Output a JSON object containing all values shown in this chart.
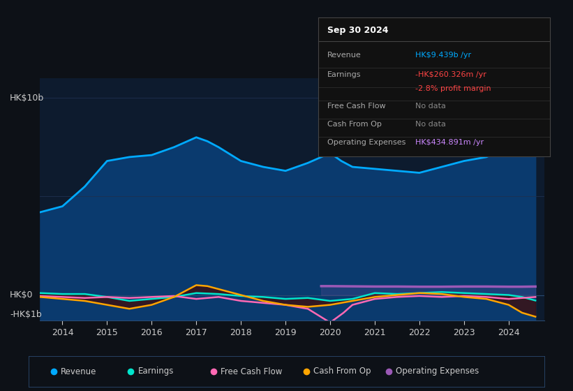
{
  "bg_color": "#0d1117",
  "plot_bg_color": "#0d1b2e",
  "grid_color": "#1e3050",
  "text_color": "#cccccc",
  "title_text_color": "#ffffff",
  "ylabel_top": "HK$10b",
  "ylabel_zero": "HK$0",
  "ylabel_neg": "-HK$1b",
  "x_ticks": [
    2014,
    2015,
    2016,
    2017,
    2018,
    2019,
    2020,
    2021,
    2022,
    2023,
    2024
  ],
  "ylim": [
    -1.3,
    11.0
  ],
  "revenue_color": "#00aaff",
  "revenue_fill": "#0a3a6e",
  "earnings_color": "#00e5cc",
  "fcf_color": "#ff69b4",
  "cashfromop_color": "#ffa500",
  "opex_color": "#9b59b6",
  "revenue_x": [
    2013.5,
    2014,
    2014.5,
    2015,
    2015.5,
    2016,
    2016.5,
    2017,
    2017.25,
    2017.5,
    2018,
    2018.5,
    2019,
    2019.5,
    2020,
    2020.25,
    2020.5,
    2021,
    2021.5,
    2022,
    2022.5,
    2023,
    2023.5,
    2024,
    2024.3,
    2024.6
  ],
  "revenue_y": [
    4.2,
    4.5,
    5.5,
    6.8,
    7.0,
    7.1,
    7.5,
    8.0,
    7.8,
    7.5,
    6.8,
    6.5,
    6.3,
    6.7,
    7.2,
    6.8,
    6.5,
    6.4,
    6.3,
    6.2,
    6.5,
    6.8,
    7.0,
    7.5,
    9.0,
    10.3
  ],
  "earnings_x": [
    2013.5,
    2014,
    2014.5,
    2015,
    2015.5,
    2016,
    2016.5,
    2017,
    2017.5,
    2018,
    2018.5,
    2019,
    2019.5,
    2020,
    2020.5,
    2021,
    2021.5,
    2022,
    2022.5,
    2023,
    2023.5,
    2024,
    2024.3,
    2024.6
  ],
  "earnings_y": [
    0.1,
    0.05,
    0.05,
    -0.1,
    -0.3,
    -0.2,
    -0.1,
    0.1,
    0.05,
    -0.05,
    -0.1,
    -0.2,
    -0.15,
    -0.3,
    -0.2,
    0.1,
    0.05,
    0.1,
    0.15,
    0.1,
    0.05,
    0.0,
    -0.1,
    -0.28
  ],
  "fcf_x": [
    2013.5,
    2014,
    2014.5,
    2015,
    2015.5,
    2016,
    2016.5,
    2017,
    2017.5,
    2018,
    2018.5,
    2019,
    2019.5,
    2020,
    2020.3,
    2020.5,
    2021,
    2021.5,
    2022,
    2022.5,
    2023,
    2023.5,
    2024,
    2024.3,
    2024.6
  ],
  "fcf_y": [
    -0.05,
    -0.1,
    -0.15,
    -0.1,
    -0.15,
    -0.1,
    -0.05,
    -0.2,
    -0.1,
    -0.3,
    -0.4,
    -0.5,
    -0.7,
    -1.4,
    -0.9,
    -0.5,
    -0.2,
    -0.1,
    -0.05,
    -0.1,
    -0.05,
    -0.1,
    -0.2,
    -0.15,
    -0.1
  ],
  "cashfromop_x": [
    2013.5,
    2014,
    2014.5,
    2015,
    2015.5,
    2016,
    2016.5,
    2017,
    2017.25,
    2017.5,
    2018,
    2018.5,
    2019,
    2019.5,
    2020,
    2020.5,
    2021,
    2021.5,
    2022,
    2022.5,
    2023,
    2023.5,
    2024,
    2024.3,
    2024.6
  ],
  "cashfromop_y": [
    -0.1,
    -0.2,
    -0.3,
    -0.5,
    -0.7,
    -0.5,
    -0.1,
    0.5,
    0.45,
    0.3,
    0.0,
    -0.3,
    -0.5,
    -0.6,
    -0.5,
    -0.3,
    -0.1,
    0.0,
    0.1,
    0.05,
    -0.1,
    -0.2,
    -0.5,
    -0.9,
    -1.1
  ],
  "opex_x": [
    2019.8,
    2020,
    2020.5,
    2021,
    2021.5,
    2022,
    2022.5,
    2023,
    2023.5,
    2024,
    2024.3,
    2024.6
  ],
  "opex_y": [
    0.45,
    0.45,
    0.44,
    0.43,
    0.43,
    0.42,
    0.42,
    0.43,
    0.43,
    0.42,
    0.42,
    0.43
  ],
  "tooltip_title": "Sep 30 2024",
  "tooltip_row_labels": [
    "Revenue",
    "Earnings",
    "",
    "Free Cash Flow",
    "Cash From Op",
    "Operating Expenses"
  ],
  "tooltip_row_values": [
    "HK$9.439b /yr",
    "-HK$260.326m /yr",
    "-2.8% profit margin",
    "No data",
    "No data",
    "HK$434.891m /yr"
  ],
  "tooltip_row_val_colors": [
    "#00aaff",
    "#ff4444",
    "#ff4444",
    "#888888",
    "#888888",
    "#cc88ff"
  ],
  "legend_items": [
    {
      "label": "Revenue",
      "color": "#00aaff"
    },
    {
      "label": "Earnings",
      "color": "#00e5cc"
    },
    {
      "label": "Free Cash Flow",
      "color": "#ff69b4"
    },
    {
      "label": "Cash From Op",
      "color": "#ffa500"
    },
    {
      "label": "Operating Expenses",
      "color": "#9b59b6"
    }
  ]
}
